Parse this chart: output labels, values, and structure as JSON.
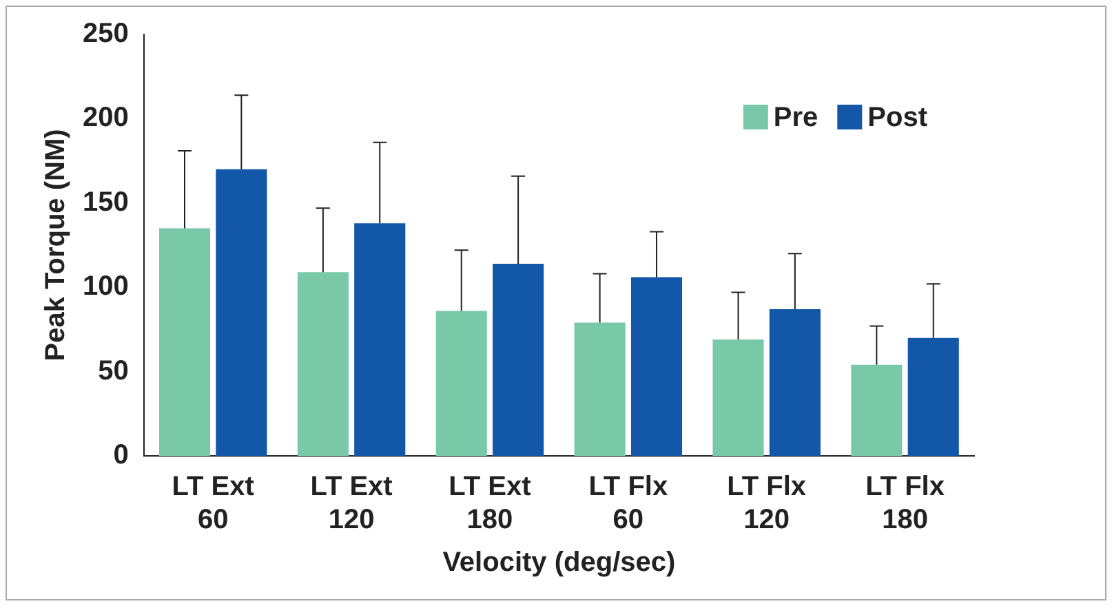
{
  "chart_data": {
    "type": "bar",
    "xlabel": "Velocity (deg/sec)",
    "ylabel": "Peak Torque (NM)",
    "categories": [
      "LT Ext 60",
      "LT Ext 120",
      "LT Ext 180",
      "LT Flx 60",
      "LT Flx 120",
      "LT Flx 180"
    ],
    "series": [
      {
        "name": "Pre",
        "color": "#79c9a9",
        "values": [
          135,
          109,
          86,
          79,
          69,
          54
        ],
        "errors": [
          [
            135,
            181
          ],
          [
            109,
            147
          ],
          [
            86,
            122
          ],
          [
            79,
            108
          ],
          [
            69,
            97
          ],
          [
            54,
            77
          ]
        ]
      },
      {
        "name": "Post",
        "color": "#1358a8",
        "values": [
          170,
          138,
          114,
          106,
          87,
          70
        ],
        "errors": [
          [
            170,
            214
          ],
          [
            138,
            186
          ],
          [
            114,
            166
          ],
          [
            106,
            133
          ],
          [
            87,
            120
          ],
          [
            70,
            102
          ]
        ]
      }
    ],
    "ylim": [
      0,
      250
    ],
    "yticks": [
      0,
      50,
      100,
      150,
      200,
      250
    ],
    "grid": false,
    "legend": "top right"
  }
}
